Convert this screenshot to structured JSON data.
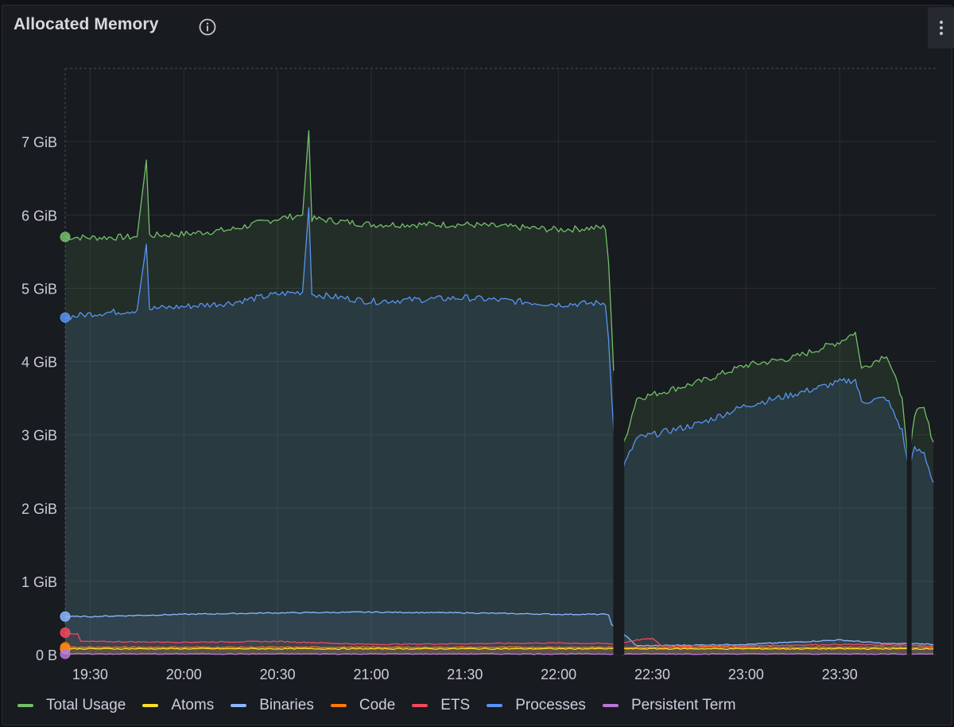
{
  "panel": {
    "title": "Allocated Memory",
    "info_icon": "info-circle-icon",
    "menu_icon": "kebab-menu-icon"
  },
  "chart_data": {
    "type": "area",
    "title": "Allocated Memory",
    "ylabel": "",
    "xlabel": "",
    "ylim": [
      0,
      8
    ],
    "y_unit": "GiB",
    "y_ticks": [
      "0 B",
      "1 GiB",
      "2 GiB",
      "3 GiB",
      "4 GiB",
      "5 GiB",
      "6 GiB",
      "7 GiB"
    ],
    "x_range": [
      "19:22",
      "24:01"
    ],
    "x_ticks": [
      "19:30",
      "20:00",
      "20:30",
      "21:00",
      "21:30",
      "22:00",
      "22:30",
      "23:00",
      "23:30"
    ],
    "grid": true,
    "legend_position": "bottom",
    "series": [
      {
        "name": "Total Usage",
        "color": "#73bf69",
        "points": [
          [
            "19:22",
            5.7
          ],
          [
            "19:30",
            5.69
          ],
          [
            "19:45",
            5.7
          ],
          [
            "19:48",
            6.75
          ],
          [
            "19:49",
            5.72
          ],
          [
            "20:00",
            5.74
          ],
          [
            "20:15",
            5.8
          ],
          [
            "20:30",
            5.95
          ],
          [
            "20:38",
            6.0
          ],
          [
            "20:40",
            7.15
          ],
          [
            "20:41",
            5.95
          ],
          [
            "21:00",
            5.87
          ],
          [
            "21:30",
            5.87
          ],
          [
            "22:00",
            5.8
          ],
          [
            "22:15",
            5.83
          ],
          [
            "22:16",
            5.35
          ],
          [
            "22:17",
            4.45
          ],
          [
            "22:18",
            3.5
          ],
          [
            "22:19",
            2.6
          ],
          [
            "22:25",
            3.5
          ],
          [
            "22:30",
            3.55
          ],
          [
            "22:45",
            3.72
          ],
          [
            "23:00",
            3.95
          ],
          [
            "23:15",
            4.05
          ],
          [
            "23:30",
            4.27
          ],
          [
            "23:35",
            4.4
          ],
          [
            "23:37",
            3.9
          ],
          [
            "23:45",
            4.1
          ],
          [
            "23:50",
            3.5
          ],
          [
            "23:52",
            2.6
          ],
          [
            "23:54",
            3.3
          ],
          [
            "23:57",
            3.35
          ],
          [
            "24:00",
            2.9
          ]
        ]
      },
      {
        "name": "Atoms",
        "color": "#fade2a",
        "points": [
          [
            "19:22",
            0.08
          ],
          [
            "24:00",
            0.08
          ]
        ]
      },
      {
        "name": "Binaries",
        "color": "#8ab8ff",
        "points": [
          [
            "19:22",
            0.52
          ],
          [
            "19:30",
            0.52
          ],
          [
            "20:00",
            0.55
          ],
          [
            "20:30",
            0.57
          ],
          [
            "21:00",
            0.58
          ],
          [
            "21:30",
            0.57
          ],
          [
            "22:00",
            0.55
          ],
          [
            "22:16",
            0.55
          ],
          [
            "22:17",
            0.4
          ],
          [
            "22:19",
            0.35
          ],
          [
            "22:25",
            0.12
          ],
          [
            "23:00",
            0.14
          ],
          [
            "23:30",
            0.2
          ],
          [
            "23:45",
            0.15
          ],
          [
            "23:55",
            0.15
          ],
          [
            "24:00",
            0.14
          ]
        ]
      },
      {
        "name": "Code",
        "color": "#ff780a",
        "points": [
          [
            "19:22",
            0.1
          ],
          [
            "24:00",
            0.1
          ]
        ]
      },
      {
        "name": "ETS",
        "color": "#f2495c",
        "points": [
          [
            "19:22",
            0.3
          ],
          [
            "19:26",
            0.28
          ],
          [
            "19:27",
            0.18
          ],
          [
            "20:00",
            0.17
          ],
          [
            "20:30",
            0.18
          ],
          [
            "21:00",
            0.14
          ],
          [
            "21:30",
            0.15
          ],
          [
            "22:00",
            0.16
          ],
          [
            "22:16",
            0.15
          ],
          [
            "22:18",
            0.14
          ],
          [
            "22:25",
            0.2
          ],
          [
            "22:30",
            0.22
          ],
          [
            "22:33",
            0.12
          ],
          [
            "23:00",
            0.12
          ],
          [
            "23:30",
            0.14
          ],
          [
            "23:45",
            0.13
          ],
          [
            "24:00",
            0.12
          ]
        ]
      },
      {
        "name": "Processes",
        "color": "#5794f2",
        "points": [
          [
            "19:22",
            4.6
          ],
          [
            "19:30",
            4.65
          ],
          [
            "19:45",
            4.7
          ],
          [
            "19:48",
            5.6
          ],
          [
            "19:49",
            4.72
          ],
          [
            "20:00",
            4.75
          ],
          [
            "20:15",
            4.8
          ],
          [
            "20:30",
            4.92
          ],
          [
            "20:38",
            4.95
          ],
          [
            "20:40",
            6.1
          ],
          [
            "20:41",
            4.92
          ],
          [
            "21:00",
            4.82
          ],
          [
            "21:30",
            4.87
          ],
          [
            "22:00",
            4.78
          ],
          [
            "22:15",
            4.8
          ],
          [
            "22:16",
            4.3
          ],
          [
            "22:17",
            3.5
          ],
          [
            "22:18",
            2.85
          ],
          [
            "22:19",
            2.4
          ],
          [
            "22:25",
            2.95
          ],
          [
            "22:30",
            3.0
          ],
          [
            "22:45",
            3.15
          ],
          [
            "23:00",
            3.4
          ],
          [
            "23:15",
            3.55
          ],
          [
            "23:30",
            3.72
          ],
          [
            "23:35",
            3.75
          ],
          [
            "23:37",
            3.45
          ],
          [
            "23:45",
            3.5
          ],
          [
            "23:50",
            3.05
          ],
          [
            "23:52",
            2.55
          ],
          [
            "23:54",
            2.8
          ],
          [
            "23:57",
            2.75
          ],
          [
            "24:00",
            2.35
          ]
        ]
      },
      {
        "name": "Persistent Term",
        "color": "#b877d9",
        "points": [
          [
            "19:22",
            0.01
          ],
          [
            "24:00",
            0.01
          ]
        ]
      }
    ]
  }
}
